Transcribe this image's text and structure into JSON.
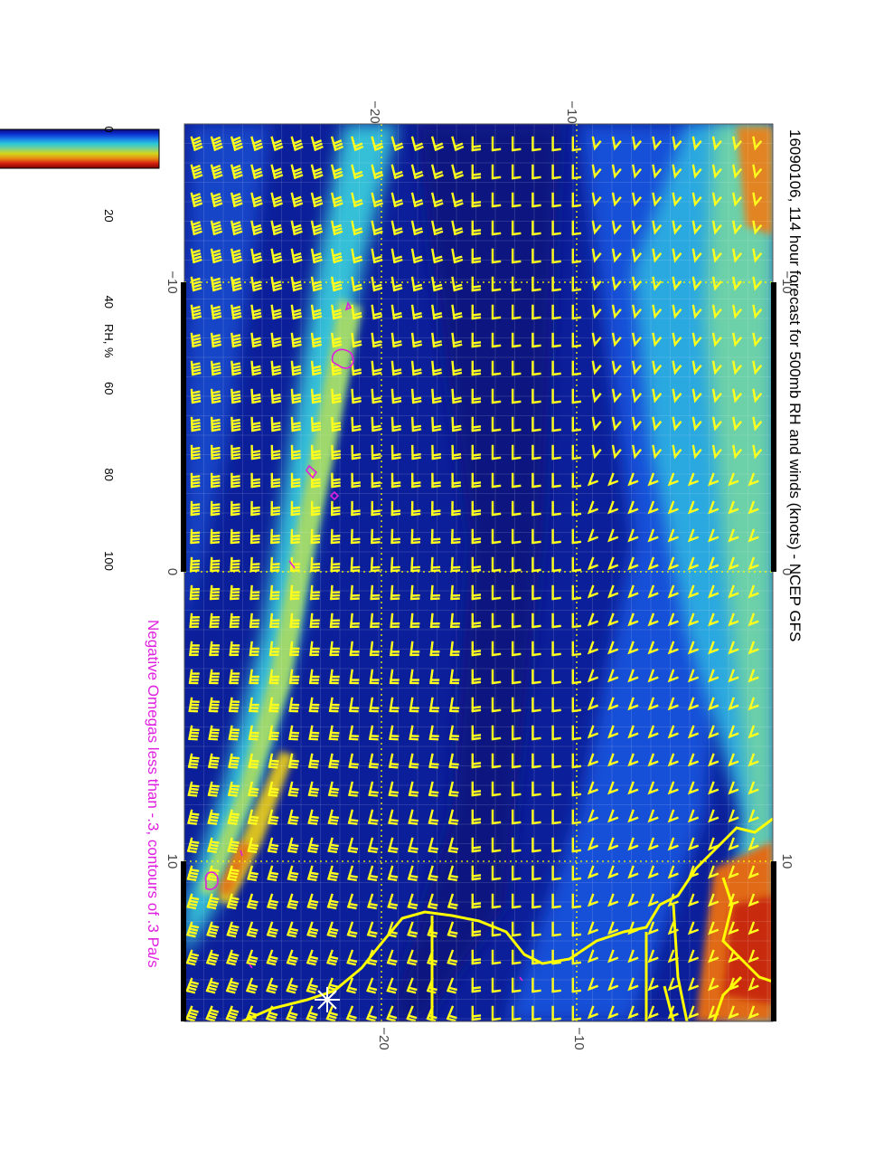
{
  "title": "16090106, 114 hour forecast for 500mb RH and winds (knots) - NCEP GFS",
  "subtitle": "Negative Omegas less than -.3, contours of .3 Pa/s",
  "colorbar": {
    "label": "RH, %",
    "ticks": [
      "0",
      "20",
      "40",
      "60",
      "80",
      "100"
    ],
    "colors": [
      "#0a0a7a",
      "#0b2fd0",
      "#1b7fe8",
      "#29c9d8",
      "#7fd08a",
      "#d3d61a",
      "#e88a14",
      "#d6200f",
      "#7a0000"
    ]
  },
  "map": {
    "top_axis_labels": [
      "−20",
      "−10"
    ],
    "bottom_axis_labels": [
      "−20",
      "−10"
    ],
    "left_axis_labels": [
      "−10",
      "0",
      "10"
    ],
    "right_axis_labels": [
      "−10",
      "0",
      "10"
    ],
    "colors": {
      "ocean_dry": "#0c1f9a",
      "moist_band": "#3cc4d8",
      "very_moist": "#d84a12",
      "wind_barbs": "#ffff1e",
      "coastline": "#ffff00",
      "omega_contours": "#e020e0",
      "station_marker": "#ffffff"
    },
    "icon": "station-star-icon"
  }
}
